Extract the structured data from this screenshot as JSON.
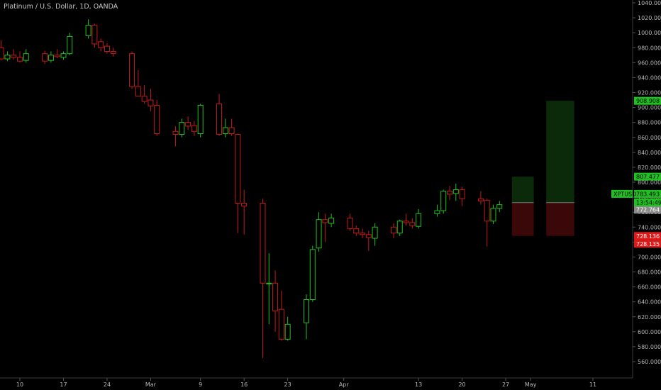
{
  "header": {
    "title": "Platinum / U.S. Dollar, 1D, OANDA"
  },
  "colors": {
    "background": "#000000",
    "up": "#1ec11e",
    "down": "#c41a1a",
    "profit_zone": "#0a2a0a",
    "loss_zone": "#3a0808",
    "profit_tag": "#21c021",
    "loss_tag": "#e01818",
    "grey_tag": "#8a8a8a"
  },
  "chart_data": {
    "type": "candlestick",
    "title": "Platinum / U.S. Dollar, 1D, OANDA",
    "symbol": "XPTUSD",
    "ylim": [
      553,
      1045
    ],
    "y_ticks": [
      560,
      580,
      600,
      620,
      640,
      660,
      680,
      700,
      720,
      740,
      760,
      780,
      800,
      820,
      840,
      860,
      880,
      900,
      920,
      940,
      960,
      980,
      1000,
      1020,
      1040
    ],
    "x_tick_labels": [
      {
        "label": "10",
        "day": 10
      },
      {
        "label": "17",
        "day": 17
      },
      {
        "label": "24",
        "day": 24
      },
      {
        "label": "Mar",
        "day": 31
      },
      {
        "label": "9",
        "day": 39
      },
      {
        "label": "16",
        "day": 46
      },
      {
        "label": "23",
        "day": 53
      },
      {
        "label": "Apr",
        "day": 62
      },
      {
        "label": "13",
        "day": 74
      },
      {
        "label": "20",
        "day": 81
      },
      {
        "label": "27",
        "day": 88
      },
      {
        "label": "May",
        "day": 92
      },
      {
        "label": "11",
        "day": 102
      }
    ],
    "candles": [
      {
        "day": 7,
        "o": 980,
        "h": 990,
        "l": 963,
        "c": 965
      },
      {
        "day": 8,
        "o": 965,
        "h": 975,
        "l": 962,
        "c": 970
      },
      {
        "day": 9,
        "o": 970,
        "h": 978,
        "l": 964,
        "c": 967
      },
      {
        "day": 10,
        "o": 967,
        "h": 975,
        "l": 960,
        "c": 962
      },
      {
        "day": 11,
        "o": 963,
        "h": 978,
        "l": 960,
        "c": 972
      },
      {
        "day": 14,
        "o": 972,
        "h": 976,
        "l": 958,
        "c": 962
      },
      {
        "day": 15,
        "o": 963,
        "h": 975,
        "l": 960,
        "c": 970
      },
      {
        "day": 16,
        "o": 970,
        "h": 978,
        "l": 966,
        "c": 968
      },
      {
        "day": 17,
        "o": 967,
        "h": 975,
        "l": 964,
        "c": 972
      },
      {
        "day": 18,
        "o": 972,
        "h": 1000,
        "l": 970,
        "c": 995
      },
      {
        "day": 21,
        "o": 996,
        "h": 1018,
        "l": 992,
        "c": 1010
      },
      {
        "day": 22,
        "o": 1010,
        "h": 1012,
        "l": 980,
        "c": 985
      },
      {
        "day": 23,
        "o": 988,
        "h": 992,
        "l": 975,
        "c": 980
      },
      {
        "day": 24,
        "o": 982,
        "h": 986,
        "l": 972,
        "c": 975
      },
      {
        "day": 25,
        "o": 975,
        "h": 980,
        "l": 968,
        "c": 972
      },
      {
        "day": 28,
        "o": 972,
        "h": 975,
        "l": 925,
        "c": 928
      },
      {
        "day": 29,
        "o": 928,
        "h": 950,
        "l": 915,
        "c": 915
      },
      {
        "day": 30,
        "o": 915,
        "h": 930,
        "l": 905,
        "c": 908
      },
      {
        "day": 31,
        "o": 910,
        "h": 925,
        "l": 895,
        "c": 902
      },
      {
        "day": 32,
        "o": 903,
        "h": 910,
        "l": 862,
        "c": 865
      },
      {
        "day": 35,
        "o": 868,
        "h": 875,
        "l": 848,
        "c": 864
      },
      {
        "day": 36,
        "o": 864,
        "h": 885,
        "l": 860,
        "c": 880
      },
      {
        "day": 37,
        "o": 880,
        "h": 888,
        "l": 870,
        "c": 875
      },
      {
        "day": 38,
        "o": 876,
        "h": 882,
        "l": 862,
        "c": 868
      },
      {
        "day": 39,
        "o": 865,
        "h": 905,
        "l": 860,
        "c": 903
      },
      {
        "day": 42,
        "o": 905,
        "h": 918,
        "l": 862,
        "c": 864
      },
      {
        "day": 43,
        "o": 865,
        "h": 885,
        "l": 860,
        "c": 873
      },
      {
        "day": 44,
        "o": 873,
        "h": 885,
        "l": 862,
        "c": 865
      },
      {
        "day": 45,
        "o": 864,
        "h": 865,
        "l": 732,
        "c": 772
      },
      {
        "day": 46,
        "o": 772,
        "h": 790,
        "l": 730,
        "c": 768
      },
      {
        "day": 49,
        "o": 772,
        "h": 778,
        "l": 565,
        "c": 665
      },
      {
        "day": 50,
        "o": 664,
        "h": 705,
        "l": 610,
        "c": 665
      },
      {
        "day": 51,
        "o": 665,
        "h": 682,
        "l": 600,
        "c": 628
      },
      {
        "day": 52,
        "o": 630,
        "h": 655,
        "l": 588,
        "c": 590
      },
      {
        "day": 53,
        "o": 590,
        "h": 620,
        "l": 588,
        "c": 610
      },
      {
        "day": 56,
        "o": 612,
        "h": 650,
        "l": 590,
        "c": 643
      },
      {
        "day": 57,
        "o": 643,
        "h": 715,
        "l": 640,
        "c": 710
      },
      {
        "day": 58,
        "o": 712,
        "h": 760,
        "l": 707,
        "c": 750
      },
      {
        "day": 59,
        "o": 750,
        "h": 758,
        "l": 720,
        "c": 746
      },
      {
        "day": 60,
        "o": 745,
        "h": 758,
        "l": 740,
        "c": 752
      },
      {
        "day": 63,
        "o": 752,
        "h": 758,
        "l": 735,
        "c": 738
      },
      {
        "day": 64,
        "o": 738,
        "h": 742,
        "l": 728,
        "c": 732
      },
      {
        "day": 65,
        "o": 732,
        "h": 738,
        "l": 725,
        "c": 730
      },
      {
        "day": 66,
        "o": 730,
        "h": 735,
        "l": 708,
        "c": 726
      },
      {
        "day": 67,
        "o": 725,
        "h": 745,
        "l": 715,
        "c": 740
      },
      {
        "day": 70,
        "o": 740,
        "h": 745,
        "l": 725,
        "c": 732
      },
      {
        "day": 71,
        "o": 732,
        "h": 750,
        "l": 728,
        "c": 748
      },
      {
        "day": 72,
        "o": 748,
        "h": 758,
        "l": 742,
        "c": 746
      },
      {
        "day": 73,
        "o": 746,
        "h": 752,
        "l": 738,
        "c": 742
      },
      {
        "day": 74,
        "o": 741,
        "h": 764,
        "l": 738,
        "c": 758
      },
      {
        "day": 77,
        "o": 758,
        "h": 770,
        "l": 754,
        "c": 762
      },
      {
        "day": 78,
        "o": 762,
        "h": 790,
        "l": 758,
        "c": 788
      },
      {
        "day": 79,
        "o": 788,
        "h": 795,
        "l": 776,
        "c": 784
      },
      {
        "day": 80,
        "o": 785,
        "h": 798,
        "l": 775,
        "c": 790
      },
      {
        "day": 81,
        "o": 790,
        "h": 794,
        "l": 768,
        "c": 778
      },
      {
        "day": 84,
        "o": 778,
        "h": 788,
        "l": 770,
        "c": 775
      },
      {
        "day": 85,
        "o": 776,
        "h": 778,
        "l": 714,
        "c": 748
      },
      {
        "day": 86,
        "o": 748,
        "h": 770,
        "l": 744,
        "c": 765
      },
      {
        "day": 87,
        "o": 765,
        "h": 775,
        "l": 760,
        "c": 770
      }
    ],
    "positions": [
      {
        "from_day": 89,
        "to_day": 92.5,
        "entry": 772.765,
        "target": 807.477,
        "stop": 728.136
      },
      {
        "from_day": 94.5,
        "to_day": 99,
        "entry": 772.764,
        "target": 908.908,
        "stop": 728.135
      }
    ],
    "current_price": 783.493,
    "countdown": "13:54:49",
    "price_tags": [
      {
        "value": 908.908,
        "label": "908.908",
        "kind": "profit"
      },
      {
        "value": 807.477,
        "label": "807.477",
        "kind": "profit"
      },
      {
        "value": 772.765,
        "label": "772.765",
        "kind": "grey"
      },
      {
        "value": 772.764,
        "label": "772.764",
        "kind": "grey"
      },
      {
        "value": 783.493,
        "label": "783.493",
        "kind": "current"
      },
      {
        "value": 728.136,
        "label": "728.136",
        "kind": "loss"
      },
      {
        "value": 728.135,
        "label": "728.135",
        "kind": "loss"
      }
    ]
  }
}
